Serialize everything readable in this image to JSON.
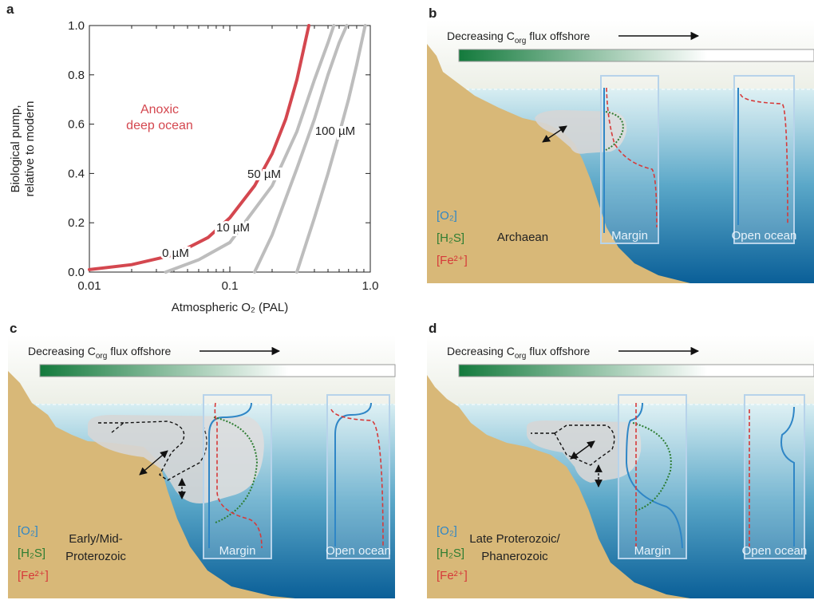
{
  "chart_data": {
    "type": "line",
    "panel_label": "a",
    "xlabel": "Atmospheric O₂ (PAL)",
    "ylabel": [
      "Biological pump,",
      "relative to modern"
    ],
    "annotation": [
      "Anoxic",
      "deep ocean"
    ],
    "xscale": "log",
    "grid": false,
    "xlim": [
      0.01,
      1
    ],
    "xticks": [
      0.01,
      0.1,
      {
        "value": 1,
        "label": "1.0"
      }
    ],
    "ylim": [
      0,
      1
    ],
    "yticks": [
      {
        "value": 0,
        "label": "0.0"
      },
      0.2,
      0.4,
      0.6,
      0.8,
      {
        "value": 1,
        "label": "1.0"
      }
    ],
    "series": [
      {
        "name": "0 µM",
        "color": "#d4474f",
        "x": [
          0.01,
          0.02,
          0.04,
          0.07,
          0.1,
          0.15,
          0.2,
          0.25,
          0.3,
          0.365
        ],
        "values": [
          0.01,
          0.03,
          0.07,
          0.14,
          0.22,
          0.35,
          0.48,
          0.62,
          0.78,
          1.0
        ]
      },
      {
        "name": "10 µM",
        "color": "#bdbdbd",
        "x": [
          0.035,
          0.06,
          0.1,
          0.2,
          0.3,
          0.4,
          0.5,
          0.55
        ],
        "values": [
          0,
          0.05,
          0.12,
          0.35,
          0.57,
          0.78,
          0.93,
          1.0
        ]
      },
      {
        "name": "50 µM",
        "color": "#bdbdbd",
        "x": [
          0.15,
          0.2,
          0.3,
          0.4,
          0.5,
          0.6,
          0.68
        ],
        "values": [
          0,
          0.15,
          0.42,
          0.62,
          0.8,
          0.93,
          1.0
        ]
      },
      {
        "name": "100 µM",
        "color": "#bdbdbd",
        "x": [
          0.3,
          0.4,
          0.5,
          0.6,
          0.7,
          0.8,
          0.92
        ],
        "values": [
          0,
          0.22,
          0.4,
          0.56,
          0.7,
          0.84,
          1.0
        ]
      }
    ]
  },
  "panels": [
    {
      "label": "b",
      "flux": {
        "pre": "Decreasing C",
        "sub": "org",
        "post": "flux offshore"
      },
      "legend": [
        "[O₂]",
        "[H₂S]",
        "[Fe²⁺]"
      ],
      "era": [
        "Archaean"
      ],
      "margin": "Margin",
      "open": "Open ocean"
    },
    {
      "label": "c",
      "flux": {
        "pre": "Decreasing C",
        "sub": "org",
        "post": "flux offshore"
      },
      "legend": [
        "[O₂]",
        "[H₂S]",
        "[Fe²⁺]"
      ],
      "era": [
        "Early/Mid-",
        "Proterozoic"
      ],
      "margin": "Margin",
      "open": "Open ocean"
    },
    {
      "label": "d",
      "flux": {
        "pre": "Decreasing C",
        "sub": "org",
        "post": "flux offshore"
      },
      "legend": [
        "[O₂]",
        "[H₂S]",
        "[Fe²⁺]"
      ],
      "era": [
        "Late Proterozoic/",
        "Phanerozoic"
      ],
      "margin": "Margin",
      "open": "Open ocean"
    }
  ]
}
